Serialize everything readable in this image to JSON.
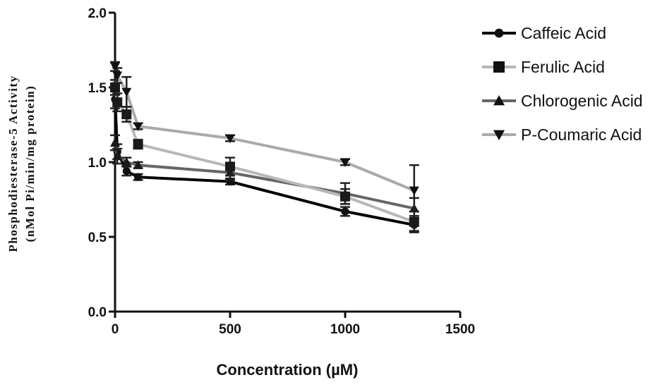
{
  "chart_data": {
    "type": "line",
    "title": "",
    "xlabel": "Concentration (µM)",
    "ylabel_lines": [
      "Phosphodiesterase-5 Activity",
      "(nMol Pi/min/mg protein)"
    ],
    "xlim": [
      0,
      1500
    ],
    "ylim": [
      0,
      2.0
    ],
    "xticks": [
      0,
      500,
      1000,
      1500
    ],
    "xtick_labels": [
      "0",
      "500",
      "1000",
      "1500"
    ],
    "yticks": [
      0,
      0.5,
      1.0,
      1.5,
      2.0
    ],
    "ytick_labels": [
      "0.0",
      "0.5",
      "1.0",
      "1.5",
      "2.0"
    ],
    "legend_position": "right",
    "grid": false,
    "x": [
      0,
      10,
      50,
      100,
      500,
      1000,
      1300
    ],
    "series": [
      {
        "name": "Caffeic Acid",
        "marker": "circle",
        "color": "#000000",
        "values": [
          1.42,
          1.07,
          0.94,
          0.9,
          0.87,
          0.67,
          0.58
        ],
        "errors": [
          0.06,
          0.05,
          0.03,
          0.02,
          0.02,
          0.03,
          0.04
        ]
      },
      {
        "name": "Ferulic Acid",
        "marker": "square",
        "color": "#b8b8b8",
        "values": [
          1.5,
          1.4,
          1.32,
          1.12,
          0.97,
          0.77,
          0.6
        ],
        "errors": [
          0.05,
          0.06,
          0.05,
          0.03,
          0.06,
          0.05,
          0.07
        ]
      },
      {
        "name": "Chlorogenic Acid",
        "marker": "triangle-up",
        "color": "#666666",
        "values": [
          1.13,
          1.04,
          1.0,
          0.98,
          0.93,
          0.79,
          0.69
        ],
        "errors": [
          0.05,
          0.05,
          0.03,
          0.02,
          0.05,
          0.07,
          0.07
        ]
      },
      {
        "name": "P-Coumaric Acid",
        "marker": "triangle-down",
        "color": "#aaaaaa",
        "values": [
          1.64,
          1.58,
          1.47,
          1.24,
          1.16,
          1.0,
          0.81
        ],
        "errors": [
          0.03,
          0.05,
          0.1,
          0.02,
          0.02,
          0.02,
          0.17
        ]
      }
    ]
  }
}
